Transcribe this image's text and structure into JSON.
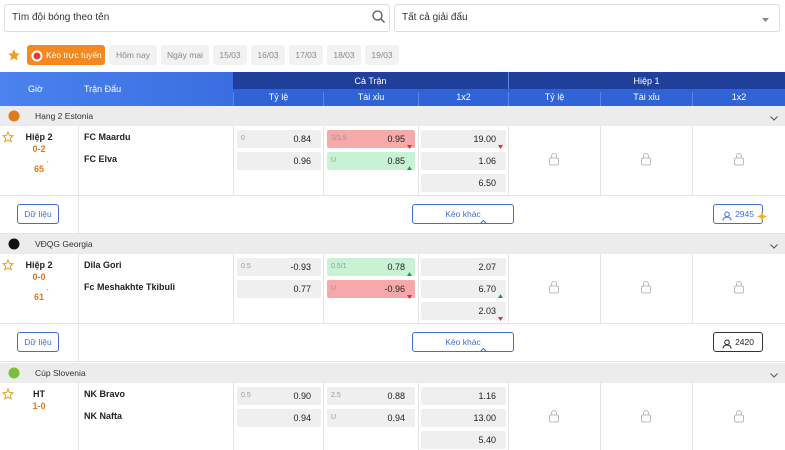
{
  "search": {
    "placeholder": "Tìm đội bóng theo tên",
    "league_select": "Tất cả giải đấu"
  },
  "tabs": [
    "Kèo trực tuyến",
    "Hôm nay",
    "Ngày mai",
    "15/03",
    "16/03",
    "17/03",
    "18/03",
    "19/03"
  ],
  "header": {
    "time": "Giờ",
    "match": "Trận Đấu",
    "full": "Cả Trận",
    "half": "Hiệp 1",
    "cols": [
      "Tỷ lệ",
      "Tài xỉu",
      "1x2"
    ]
  },
  "matches": [
    {
      "league": "Hạng 2 Estonia",
      "status": "Hiệp 2",
      "score": "0-2",
      "minute": "65",
      "minute_mark": "'",
      "home": "FC Maardu",
      "away": "FC Elva",
      "handicap": [
        {
          "line": "0",
          "value": "0.84"
        },
        {
          "value": "0.96"
        }
      ],
      "over_under": [
        {
          "line": "3/3.5",
          "value": "0.95",
          "trend": "down"
        },
        {
          "line": "U",
          "value": "0.85",
          "trend": "up"
        }
      ],
      "odds_1x2": [
        {
          "value": "19.00",
          "trend": "down"
        },
        {
          "value": "1.06"
        },
        {
          "value": "6.50"
        }
      ],
      "buttons": {
        "stats": "Dữ liệu",
        "more": "Kèo khác",
        "viewers": "2945"
      }
    },
    {
      "league": "VĐQG Georgia",
      "status": "Hiệp 2",
      "score": "0-0",
      "minute": "61",
      "minute_mark": "'",
      "home": "Dila Gori",
      "away": "Fc Meshakhte Tkibuli",
      "handicap": [
        {
          "line": "0.5",
          "value": "-0.93"
        },
        {
          "value": "0.77"
        }
      ],
      "over_under": [
        {
          "line": "0.5/1",
          "value": "0.78",
          "trend": "up"
        },
        {
          "line": "U",
          "value": "-0.96",
          "trend": "down"
        }
      ],
      "odds_1x2": [
        {
          "value": "2.07"
        },
        {
          "value": "6.70",
          "trend": "up"
        },
        {
          "value": "2.03",
          "trend": "down"
        }
      ],
      "buttons": {
        "stats": "Dữ liệu",
        "more": "Kèo khác",
        "viewers": "2420"
      }
    },
    {
      "league": "Cúp Slovenia",
      "status": "HT",
      "score": "1-0",
      "home": "NK Bravo",
      "away": "NK Nafta",
      "handicap": [
        {
          "line": "0.5",
          "value": "0.90"
        },
        {
          "value": "0.94"
        }
      ],
      "over_under": [
        {
          "line": "2.5",
          "value": "0.88"
        },
        {
          "line": "U",
          "value": "0.94"
        }
      ],
      "odds_1x2": [
        {
          "value": "1.16"
        },
        {
          "value": "13.00"
        },
        {
          "value": "5.40"
        }
      ]
    }
  ]
}
